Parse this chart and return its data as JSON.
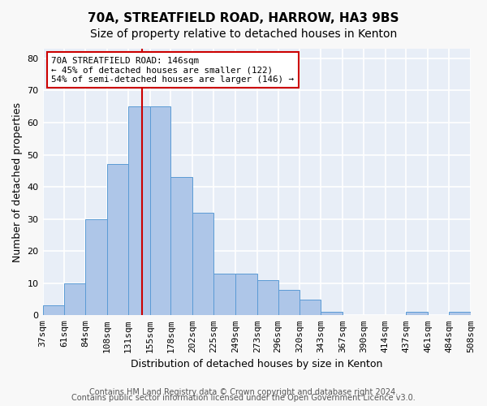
{
  "title1": "70A, STREATFIELD ROAD, HARROW, HA3 9BS",
  "title2": "Size of property relative to detached houses in Kenton",
  "xlabel": "Distribution of detached houses by size in Kenton",
  "ylabel": "Number of detached properties",
  "bin_labels": [
    "37sqm",
    "61sqm",
    "84sqm",
    "108sqm",
    "131sqm",
    "155sqm",
    "178sqm",
    "202sqm",
    "225sqm",
    "249sqm",
    "273sqm",
    "296sqm",
    "320sqm",
    "343sqm",
    "367sqm",
    "390sqm",
    "414sqm",
    "437sqm",
    "461sqm",
    "484sqm",
    "508sqm"
  ],
  "bar_values": [
    3,
    10,
    30,
    47,
    65,
    65,
    43,
    32,
    13,
    13,
    11,
    8,
    5,
    1,
    0,
    0,
    0,
    1,
    0,
    1
  ],
  "bar_color": "#aec6e8",
  "bar_edgecolor": "#5b9bd5",
  "vline_x": 146,
  "vline_color": "#cc0000",
  "annotation_text": "70A STREATFIELD ROAD: 146sqm\n← 45% of detached houses are smaller (122)\n54% of semi-detached houses are larger (146) →",
  "annotation_box_color": "#ffffff",
  "annotation_box_edgecolor": "#cc0000",
  "ylim": [
    0,
    83
  ],
  "yticks": [
    0,
    10,
    20,
    30,
    40,
    50,
    60,
    70,
    80
  ],
  "property_size": 146,
  "footer1": "Contains HM Land Registry data © Crown copyright and database right 2024.",
  "footer2": "Contains public sector information licensed under the Open Government Licence v3.0.",
  "background_color": "#e8eef7",
  "grid_color": "#ffffff",
  "title_fontsize": 11,
  "subtitle_fontsize": 10,
  "axis_label_fontsize": 9,
  "tick_fontsize": 8,
  "footer_fontsize": 7
}
